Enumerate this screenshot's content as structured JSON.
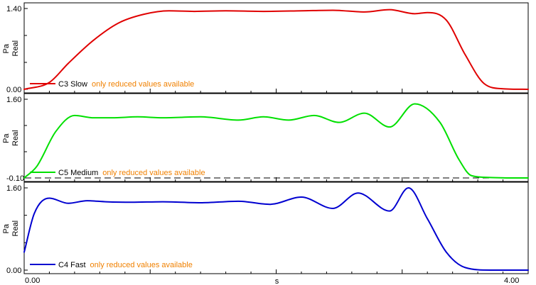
{
  "chart_data": {
    "type": "line",
    "x_unit": "s",
    "x_range": [
      0.0,
      4.0
    ],
    "x_tick_labels": [
      "0.00",
      "4.00"
    ],
    "panels": [
      {
        "ylim": [
          0.0,
          1.4
        ],
        "y_tick_labels": [
          "1.40",
          "0.00"
        ],
        "y_unit": "Pa",
        "y_label": "Real",
        "reference_line": null,
        "series": {
          "name": "C3 Slow",
          "note": "only reduced values available",
          "color": "#e00000",
          "x": [
            0.0,
            0.2,
            0.35,
            0.55,
            0.75,
            0.95,
            1.15,
            1.35,
            1.6,
            1.9,
            2.2,
            2.45,
            2.7,
            2.9,
            3.1,
            3.2,
            3.35,
            3.5,
            3.65,
            3.8,
            4.0
          ],
          "y": [
            0.0,
            0.12,
            0.45,
            0.85,
            1.15,
            1.3,
            1.36,
            1.35,
            1.36,
            1.35,
            1.36,
            1.37,
            1.34,
            1.38,
            1.31,
            1.33,
            1.2,
            0.6,
            0.1,
            0.01,
            0.0
          ]
        }
      },
      {
        "ylim": [
          -0.1,
          1.6
        ],
        "y_tick_labels": [
          "1.60",
          "-0.10"
        ],
        "y_unit": "Pa",
        "y_label": "Real",
        "reference_line": -0.1,
        "series": {
          "name": "C5 Medium",
          "note": "only reduced values available",
          "color": "#00e000",
          "x": [
            0.0,
            0.1,
            0.25,
            0.4,
            0.55,
            0.7,
            0.9,
            1.1,
            1.4,
            1.7,
            1.9,
            2.1,
            2.3,
            2.5,
            2.7,
            2.9,
            3.1,
            3.3,
            3.45,
            3.55,
            3.7,
            3.85,
            4.0
          ],
          "y": [
            -0.1,
            0.15,
            0.9,
            1.25,
            1.2,
            1.2,
            1.22,
            1.2,
            1.22,
            1.15,
            1.22,
            1.15,
            1.25,
            1.1,
            1.3,
            1.0,
            1.5,
            1.1,
            0.3,
            -0.05,
            -0.09,
            -0.1,
            -0.1
          ]
        }
      },
      {
        "ylim": [
          0.0,
          1.6
        ],
        "y_tick_labels": [
          "1.60",
          "0.00"
        ],
        "y_unit": "Pa",
        "y_label": "Real",
        "reference_line": null,
        "series": {
          "name": "C4 Fast",
          "note": "only reduced values available",
          "color": "#0000d0",
          "x": [
            0.0,
            0.08,
            0.2,
            0.35,
            0.5,
            0.65,
            0.85,
            1.1,
            1.4,
            1.7,
            1.95,
            2.2,
            2.45,
            2.65,
            2.9,
            3.05,
            3.2,
            3.35,
            3.5,
            3.7,
            3.85,
            4.0
          ],
          "y": [
            0.35,
            1.1,
            1.4,
            1.3,
            1.35,
            1.33,
            1.32,
            1.33,
            1.31,
            1.34,
            1.28,
            1.42,
            1.2,
            1.5,
            1.15,
            1.6,
            1.0,
            0.35,
            0.05,
            0.0,
            0.0,
            0.0
          ]
        }
      }
    ]
  },
  "colors": {
    "frame": "#000000",
    "note_text": "#f08000",
    "reference_line": "#000000"
  }
}
